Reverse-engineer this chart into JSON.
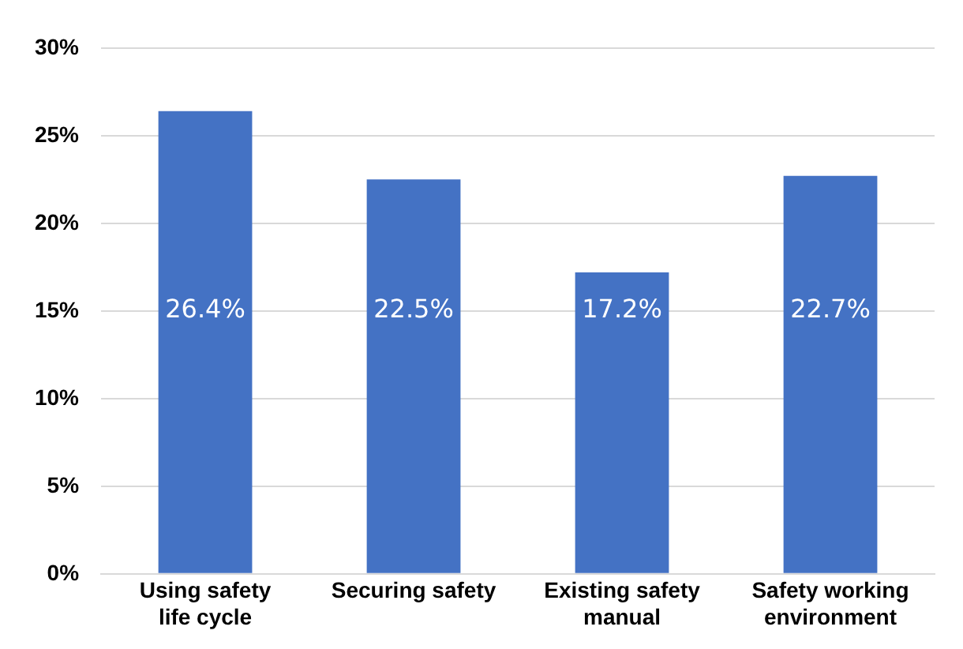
{
  "chart_data": {
    "type": "bar",
    "categories": [
      "Using safety life cycle",
      "Securing safety",
      "Existing safety manual",
      "Safety working environment"
    ],
    "values": [
      26.4,
      22.5,
      17.2,
      22.7
    ],
    "value_labels": [
      "26.4%",
      "22.5%",
      "17.2%",
      "22.7%"
    ],
    "color": "#4472c4",
    "ylim": [
      0,
      30
    ],
    "yticks": [
      {
        "value": 0,
        "label": "0%"
      },
      {
        "value": 5,
        "label": "5%"
      },
      {
        "value": 10,
        "label": "10%"
      },
      {
        "value": 15,
        "label": "15%"
      },
      {
        "value": 20,
        "label": "20%"
      },
      {
        "value": 25,
        "label": "25%"
      },
      {
        "value": 30,
        "label": "30%"
      }
    ],
    "grid": "y",
    "legend": false
  }
}
